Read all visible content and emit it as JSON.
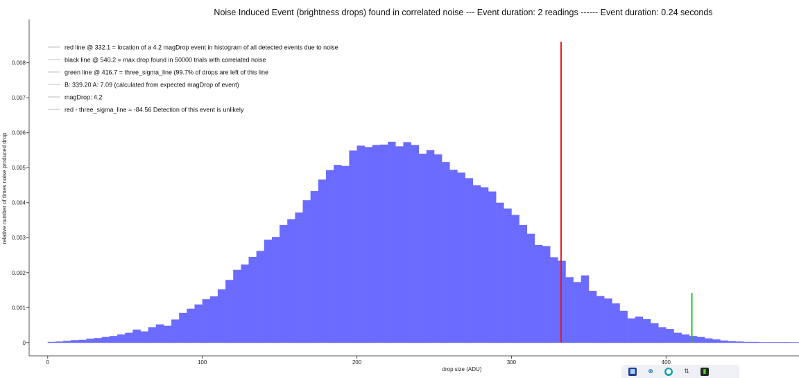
{
  "chart_data": {
    "type": "bar",
    "title": "Noise Induced Event (brightness drops) found in correlated noise --- Event duration: 2 readings ------ Event duration: 0.24 seconds",
    "xlabel": "drop size (ADU)",
    "ylabel": "relative number of times noise produced drop",
    "xlim": [
      -12,
      486
    ],
    "ylim": [
      -0.00038,
      0.00924
    ],
    "x_ticks": [
      0,
      100,
      200,
      300,
      400
    ],
    "x_tick_labels": [
      "0",
      "100",
      "200",
      "300",
      "400"
    ],
    "y_ticks": [
      0,
      0.001,
      0.002,
      0.003,
      0.004,
      0.005,
      0.006,
      0.007,
      0.008
    ],
    "y_tick_labels": [
      "0",
      "0.001",
      "0.002",
      "0.003",
      "0.004",
      "0.005",
      "0.006",
      "0.007",
      "0.008"
    ],
    "grid": false,
    "legend_position": "top-left",
    "bar_color": "#6b6bff",
    "histogram": {
      "bin_edges_start": 0,
      "bin_width": 5,
      "values": [
        2e-05,
        3e-05,
        5e-05,
        7e-05,
        8e-05,
        0.00011,
        0.00013,
        0.00016,
        0.00019,
        0.00023,
        0.00028,
        0.00037,
        0.00032,
        0.00044,
        0.00052,
        0.00048,
        0.00066,
        0.00085,
        0.00097,
        0.00109,
        0.00124,
        0.00132,
        0.00152,
        0.00179,
        0.00208,
        0.00223,
        0.00245,
        0.00262,
        0.00294,
        0.00302,
        0.00336,
        0.00353,
        0.00372,
        0.00407,
        0.00433,
        0.00466,
        0.00493,
        0.00508,
        0.00505,
        0.00549,
        0.00563,
        0.00559,
        0.00565,
        0.00566,
        0.00574,
        0.00561,
        0.00573,
        0.00565,
        0.0054,
        0.0055,
        0.00538,
        0.00516,
        0.00494,
        0.00486,
        0.0047,
        0.0045,
        0.00444,
        0.00432,
        0.004,
        0.00383,
        0.00365,
        0.00336,
        0.00311,
        0.00279,
        0.00276,
        0.00244,
        0.00234,
        0.00187,
        0.00173,
        0.00192,
        0.00148,
        0.00133,
        0.00126,
        0.00112,
        0.00091,
        0.00069,
        0.00074,
        0.00067,
        0.00055,
        0.00044,
        0.00039,
        0.00028,
        0.00023,
        0.00019,
        0.00016,
        0.00012,
        9e-05,
        6e-05,
        4e-05,
        3e-05,
        2e-05,
        2e-05,
        1e-05,
        1e-05,
        1e-05,
        1e-05
      ]
    },
    "vlines": [
      {
        "name": "red line",
        "x": 332.1,
        "ymax": 0.0086,
        "color": "#e41a1a"
      },
      {
        "name": "green line",
        "x": 416.7,
        "ymax": 0.00142,
        "color": "#33bb33"
      }
    ],
    "legend": [
      {
        "label": "red line @ 332.1 = location of a 4.2 magDrop event in histogram of all detected events due to noise"
      },
      {
        "label": "black line @ 540.2 = max drop found in 50000 trials with correlated noise"
      },
      {
        "label": "green line @ 416.7 = three_sigma_line (99.7% of drops are left of this line"
      },
      {
        "label": "B: 339.20  A: 7.09 (calculated from expected magDrop of event)"
      },
      {
        "label": "magDrop: 4.2"
      },
      {
        "label": "red - three_sigma_line = -84.56  Detection of this event is unlikely"
      }
    ]
  },
  "taskbar": {
    "icons": [
      "app-icon",
      "bluetooth-icon",
      "network-icon",
      "usb-icon",
      "gpu-icon"
    ]
  }
}
